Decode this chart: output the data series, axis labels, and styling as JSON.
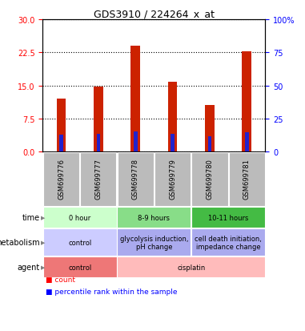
{
  "title": "GDS3910 / 224264_x_at",
  "samples": [
    "GSM699776",
    "GSM699777",
    "GSM699778",
    "GSM699779",
    "GSM699780",
    "GSM699781"
  ],
  "red_values": [
    12.0,
    14.8,
    24.0,
    15.8,
    10.5,
    22.8
  ],
  "blue_values": [
    13.0,
    13.5,
    15.5,
    13.5,
    11.5,
    15.0
  ],
  "left_ylim": [
    0,
    30
  ],
  "right_ylim": [
    0,
    100
  ],
  "left_yticks": [
    0,
    7.5,
    15,
    22.5,
    30
  ],
  "right_yticks": [
    0,
    25,
    50,
    75,
    100
  ],
  "right_yticklabels": [
    "0",
    "25",
    "50",
    "75",
    "100%"
  ],
  "red_bar_width": 0.25,
  "blue_bar_width": 0.1,
  "red_color": "#cc2200",
  "blue_color": "#2222cc",
  "time_labels": [
    {
      "text": "0 hour",
      "span": [
        0,
        1
      ],
      "color": "#ccffcc"
    },
    {
      "text": "8-9 hours",
      "span": [
        2,
        3
      ],
      "color": "#88dd88"
    },
    {
      "text": "10-11 hours",
      "span": [
        4,
        5
      ],
      "color": "#44bb44"
    }
  ],
  "metabolism_labels": [
    {
      "text": "control",
      "span": [
        0,
        1
      ],
      "color": "#ccccff"
    },
    {
      "text": "glycolysis induction,\npH change",
      "span": [
        2,
        3
      ],
      "color": "#aaaaee"
    },
    {
      "text": "cell death initiation,\nimpedance change",
      "span": [
        4,
        5
      ],
      "color": "#aaaaee"
    }
  ],
  "agent_labels": [
    {
      "text": "control",
      "span": [
        0,
        1
      ],
      "color": "#ee7777"
    },
    {
      "text": "cisplatin",
      "span": [
        2,
        5
      ],
      "color": "#ffbbbb"
    }
  ],
  "sample_bg_color": "#bbbbbb",
  "legend_red": "count",
  "legend_blue": "percentile rank within the sample",
  "row_label_fontsize": 7,
  "cell_fontsize": 6,
  "sample_fontsize": 6
}
